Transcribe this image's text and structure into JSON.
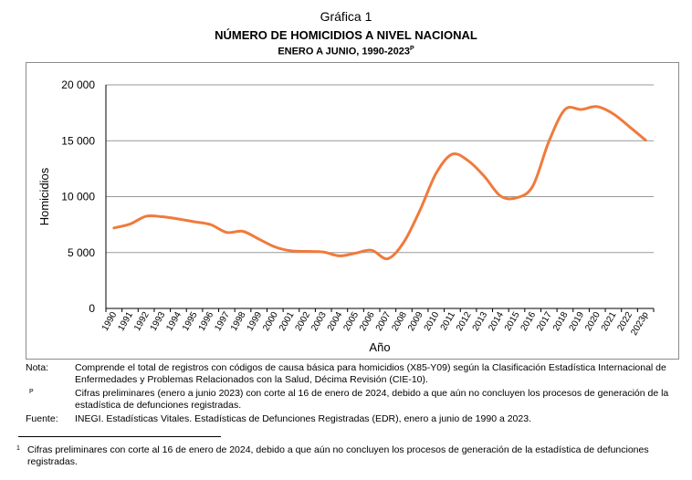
{
  "header": {
    "grafica": "Gráfica 1",
    "title": "NÚMERO DE HOMICIDIOS A NIVEL NACIONAL",
    "subtitle": "ENERO A JUNIO, 1990-2023",
    "subtitle_mark": "P"
  },
  "chart_data": {
    "type": "line",
    "xlabel": "Año",
    "ylabel": "Homicidios",
    "ylim": [
      0,
      20000
    ],
    "yticks": [
      0,
      5000,
      10000,
      15000,
      20000
    ],
    "ytick_labels": [
      "0",
      "5 000",
      "10 000",
      "15 000",
      "20 000"
    ],
    "grid": "horizontal",
    "line_color": "#f07a3c",
    "categories": [
      "1990",
      "1991",
      "1992",
      "1993",
      "1994",
      "1995",
      "1996",
      "1997",
      "1998",
      "1999",
      "2000",
      "2001",
      "2002",
      "2003",
      "2004",
      "2005",
      "2006",
      "2007",
      "2008",
      "2009",
      "2010",
      "2011",
      "2012",
      "2013",
      "2014",
      "2015",
      "2016",
      "2017",
      "2018",
      "2019",
      "2020",
      "2021",
      "2022",
      "2023p"
    ],
    "series": [
      {
        "values": [
          7200,
          7550,
          8250,
          8200,
          8000,
          7750,
          7500,
          6800,
          6900,
          6200,
          5500,
          5150,
          5100,
          5050,
          4700,
          4950,
          5200,
          4450,
          5950,
          8800,
          12100,
          13800,
          13200,
          11800,
          10050,
          9900,
          10950,
          14950,
          17800,
          17800,
          18050,
          17400,
          16250,
          15050
        ]
      }
    ]
  },
  "notes": {
    "nota_label": "Nota:",
    "nota_text": "Comprende el total de registros con códigos de causa básica para homicidios (X85-Y09) según la Clasificación Estadística Internacional de Enfermedades y Problemas Relacionados con la Salud, Décima Revisión (CIE-10).",
    "p_label": "P",
    "p_text": "Cifras preliminares (enero a junio 2023) con corte al 16 de enero de 2024, debido a que aún no concluyen los procesos de generación de la estadística de defunciones registradas.",
    "fuente_label": "Fuente:",
    "fuente_text": "INEGI. Estadísticas Vitales. Estadísticas de Defunciones Registradas (EDR), enero a junio de 1990 a 2023."
  },
  "footnote": {
    "mark": "1",
    "text": "Cifras preliminares con corte al 16 de enero de 2024, debido a que aún no concluyen los procesos de generación de la estadística de defunciones registradas."
  }
}
